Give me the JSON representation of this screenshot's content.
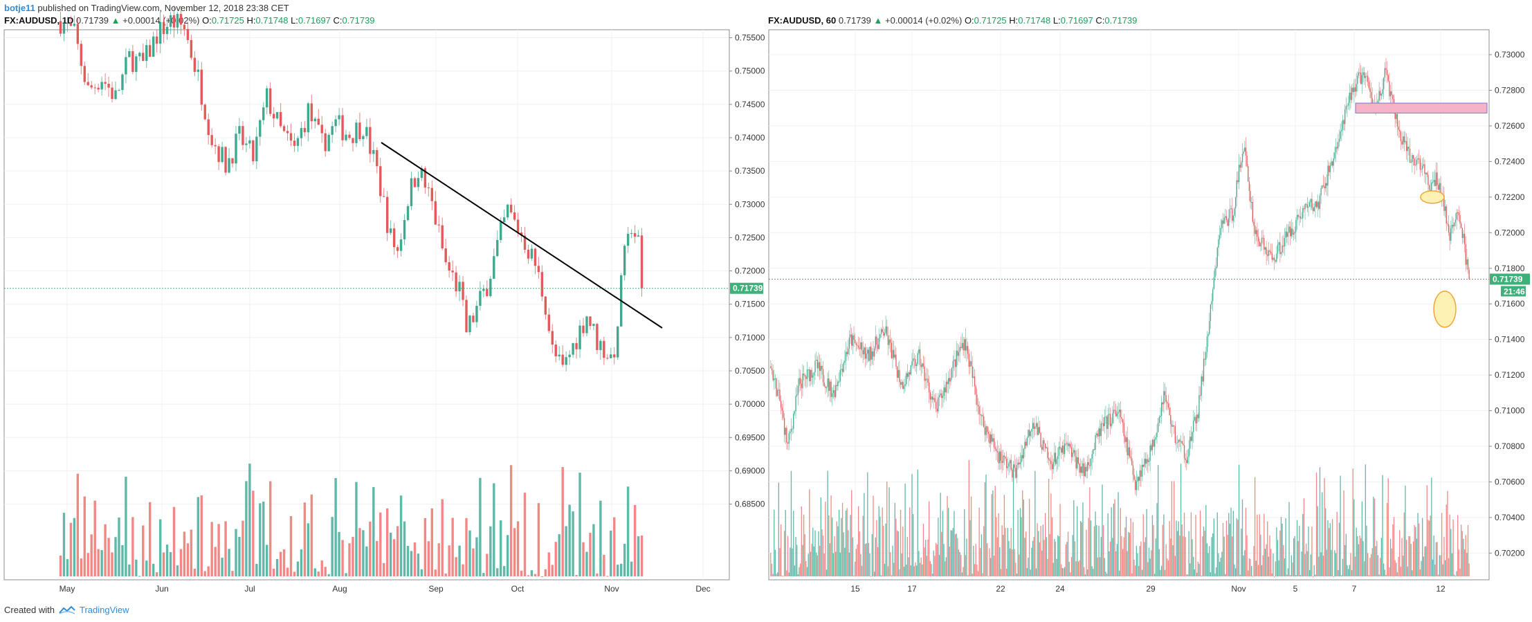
{
  "header": {
    "author": "botje11",
    "published_text": "published on TradingView.com, November 12, 2018 23:38 CET"
  },
  "footer": {
    "created_with": "Created with",
    "brand": "TradingView"
  },
  "colors": {
    "up": "#3fa98f",
    "down": "#e25a5a",
    "up_volume": "#4fb0a0",
    "down_volume": "#ef7b78",
    "last_price_tag": "#3fb07a",
    "grid": "#eef1f4",
    "box_fill": "#f6b3c7",
    "box_stroke": "#7b6fd6",
    "ellipse_fill": "#fdf2b3",
    "ellipse_stroke": "#f0a53a"
  },
  "left_panel": {
    "symbol": "FX:AUDUSD, 1D",
    "last": "0.71739",
    "change": "+0.00014 (+0.02%)",
    "o_label": "O:",
    "o_value": "0.71725",
    "h_label": "H:",
    "h_value": "0.71748",
    "l_label": "L:",
    "l_value": "0.71697",
    "c_label": "C:",
    "c_value": "0.71739",
    "price_tag": "0.71739"
  },
  "right_panel": {
    "symbol": "FX:AUDUSD, 60",
    "last": "0.71739",
    "change": "+0.00014 (+0.02%)",
    "o_label": "O:",
    "o_value": "0.71725",
    "h_label": "H:",
    "h_value": "0.71748",
    "l_label": "L:",
    "l_value": "0.71697",
    "c_label": "C:",
    "c_value": "0.71739",
    "price_tag": "0.71739",
    "countdown_tag": "21:46"
  },
  "chart_data": [
    {
      "type": "candlestick",
      "timeframe": "1D",
      "x_ticks": [
        "May",
        "Jun",
        "Jul",
        "Aug",
        "Sep",
        "Oct",
        "Nov",
        "Dec"
      ],
      "y_ticks": [
        "0.75500",
        "0.75000",
        "0.74500",
        "0.74000",
        "0.73500",
        "0.73000",
        "0.72500",
        "0.72000",
        "0.71500",
        "0.71000",
        "0.70500",
        "0.70000",
        "0.69500",
        "0.69000",
        "0.68500"
      ],
      "y_tick_values": [
        0.755,
        0.75,
        0.745,
        0.74,
        0.735,
        0.73,
        0.725,
        0.72,
        0.715,
        0.71,
        0.705,
        0.7,
        0.695,
        0.69,
        0.685
      ],
      "ylim": [
        0.6807,
        0.7562
      ],
      "last_price": 0.71739,
      "close_path": [
        {
          "t": 0,
          "v": 0.7575
        },
        {
          "t": 4,
          "v": 0.7555
        },
        {
          "t": 8,
          "v": 0.747
        },
        {
          "t": 12,
          "v": 0.749
        },
        {
          "t": 16,
          "v": 0.746
        },
        {
          "t": 20,
          "v": 0.752
        },
        {
          "t": 24,
          "v": 0.751
        },
        {
          "t": 28,
          "v": 0.7555
        },
        {
          "t": 32,
          "v": 0.7575
        },
        {
          "t": 36,
          "v": 0.7565
        },
        {
          "t": 40,
          "v": 0.749
        },
        {
          "t": 44,
          "v": 0.74
        },
        {
          "t": 48,
          "v": 0.736
        },
        {
          "t": 52,
          "v": 0.74
        },
        {
          "t": 56,
          "v": 0.737
        },
        {
          "t": 60,
          "v": 0.746
        },
        {
          "t": 64,
          "v": 0.741
        },
        {
          "t": 68,
          "v": 0.738
        },
        {
          "t": 72,
          "v": 0.744
        },
        {
          "t": 76,
          "v": 0.739
        },
        {
          "t": 80,
          "v": 0.742
        },
        {
          "t": 84,
          "v": 0.7405
        },
        {
          "t": 88,
          "v": 0.742
        },
        {
          "t": 92,
          "v": 0.735
        },
        {
          "t": 96,
          "v": 0.725
        },
        {
          "t": 98,
          "v": 0.723
        },
        {
          "t": 101,
          "v": 0.731
        },
        {
          "t": 104,
          "v": 0.7355
        },
        {
          "t": 108,
          "v": 0.73
        },
        {
          "t": 112,
          "v": 0.721
        },
        {
          "t": 116,
          "v": 0.717
        },
        {
          "t": 118,
          "v": 0.711
        },
        {
          "t": 120,
          "v": 0.713
        },
        {
          "t": 124,
          "v": 0.718
        },
        {
          "t": 128,
          "v": 0.7255
        },
        {
          "t": 130,
          "v": 0.729
        },
        {
          "t": 134,
          "v": 0.7255
        },
        {
          "t": 138,
          "v": 0.721
        },
        {
          "t": 141,
          "v": 0.715
        },
        {
          "t": 143,
          "v": 0.708
        },
        {
          "t": 146,
          "v": 0.705
        },
        {
          "t": 150,
          "v": 0.71
        },
        {
          "t": 153,
          "v": 0.7135
        },
        {
          "t": 156,
          "v": 0.7095
        },
        {
          "t": 160,
          "v": 0.707
        },
        {
          "t": 162,
          "v": 0.71
        },
        {
          "t": 163,
          "v": 0.72
        },
        {
          "t": 165,
          "v": 0.724
        },
        {
          "t": 166,
          "v": 0.727
        },
        {
          "t": 168,
          "v": 0.724
        },
        {
          "t": 169,
          "v": 0.7174
        }
      ],
      "volume_range": [
        0.9,
        4.6
      ],
      "trendline": {
        "from": {
          "date": "Aug 12",
          "price": 0.74
        },
        "to": {
          "date": "Nov 18",
          "price": 0.7147
        }
      }
    },
    {
      "type": "candlestick",
      "timeframe": "60",
      "x_ticks": [
        "15",
        "17",
        "22",
        "24",
        "29",
        "Nov",
        "5",
        "7",
        "12"
      ],
      "y_ticks": [
        "0.73000",
        "0.72800",
        "0.72600",
        "0.72400",
        "0.72200",
        "0.72000",
        "0.71800",
        "0.71600",
        "0.71400",
        "0.71200",
        "0.71000",
        "0.70800",
        "0.70600",
        "0.70400",
        "0.70200"
      ],
      "y_tick_values": [
        0.73,
        0.728,
        0.726,
        0.724,
        0.722,
        0.72,
        0.718,
        0.716,
        0.714,
        0.712,
        0.71,
        0.708,
        0.706,
        0.704,
        0.702
      ],
      "ylim": [
        0.7005,
        0.7314
      ],
      "last_price": 0.71739,
      "close_path": [
        {
          "t": 0,
          "v": 0.7125
        },
        {
          "t": 8,
          "v": 0.7105
        },
        {
          "t": 15,
          "v": 0.708
        },
        {
          "t": 25,
          "v": 0.7115
        },
        {
          "t": 40,
          "v": 0.7125
        },
        {
          "t": 55,
          "v": 0.711
        },
        {
          "t": 70,
          "v": 0.714
        },
        {
          "t": 85,
          "v": 0.713
        },
        {
          "t": 100,
          "v": 0.7145
        },
        {
          "t": 115,
          "v": 0.7115
        },
        {
          "t": 130,
          "v": 0.713
        },
        {
          "t": 145,
          "v": 0.71
        },
        {
          "t": 160,
          "v": 0.7125
        },
        {
          "t": 170,
          "v": 0.714
        },
        {
          "t": 185,
          "v": 0.7095
        },
        {
          "t": 200,
          "v": 0.7075
        },
        {
          "t": 215,
          "v": 0.7065
        },
        {
          "t": 230,
          "v": 0.7095
        },
        {
          "t": 245,
          "v": 0.707
        },
        {
          "t": 260,
          "v": 0.708
        },
        {
          "t": 275,
          "v": 0.7065
        },
        {
          "t": 290,
          "v": 0.709
        },
        {
          "t": 305,
          "v": 0.71
        },
        {
          "t": 320,
          "v": 0.706
        },
        {
          "t": 335,
          "v": 0.708
        },
        {
          "t": 345,
          "v": 0.711
        },
        {
          "t": 355,
          "v": 0.7085
        },
        {
          "t": 365,
          "v": 0.7075
        },
        {
          "t": 375,
          "v": 0.71
        },
        {
          "t": 385,
          "v": 0.715
        },
        {
          "t": 395,
          "v": 0.7205
        },
        {
          "t": 405,
          "v": 0.721
        },
        {
          "t": 415,
          "v": 0.725
        },
        {
          "t": 425,
          "v": 0.72
        },
        {
          "t": 440,
          "v": 0.7185
        },
        {
          "t": 455,
          "v": 0.72
        },
        {
          "t": 470,
          "v": 0.7215
        },
        {
          "t": 480,
          "v": 0.7215
        },
        {
          "t": 490,
          "v": 0.7235
        },
        {
          "t": 500,
          "v": 0.7255
        },
        {
          "t": 510,
          "v": 0.728
        },
        {
          "t": 520,
          "v": 0.729
        },
        {
          "t": 530,
          "v": 0.727
        },
        {
          "t": 540,
          "v": 0.729
        },
        {
          "t": 548,
          "v": 0.7265
        },
        {
          "t": 555,
          "v": 0.725
        },
        {
          "t": 562,
          "v": 0.724
        },
        {
          "t": 570,
          "v": 0.724
        },
        {
          "t": 578,
          "v": 0.7225
        },
        {
          "t": 585,
          "v": 0.723
        },
        {
          "t": 590,
          "v": 0.722
        },
        {
          "t": 596,
          "v": 0.7195
        },
        {
          "t": 603,
          "v": 0.7215
        },
        {
          "t": 608,
          "v": 0.7195
        },
        {
          "t": 613,
          "v": 0.7174
        }
      ],
      "volume_range": [
        0.2,
        4.4
      ],
      "resistance_zone": {
        "price_low": 0.7268,
        "price_high": 0.7272
      },
      "ellipses": [
        {
          "center_price": 0.722,
          "description": "small"
        },
        {
          "center_price": 0.7157,
          "description": "large"
        }
      ]
    }
  ]
}
